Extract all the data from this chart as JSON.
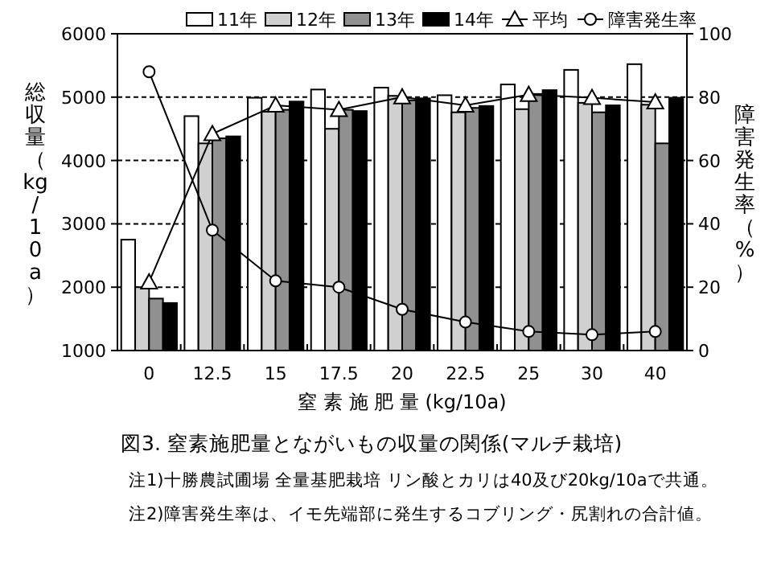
{
  "chart_data": {
    "type": "bar",
    "title": "図3. 窒素施肥量とながいもの収量の関係(マルチ栽培)",
    "xlabel": "窒 素 施 肥 量 (kg/10a)",
    "ylabel": "総収量（kg/10a）",
    "y2label": "障害発生率（%）",
    "categories": [
      "0",
      "12.5",
      "15",
      "17.5",
      "20",
      "22.5",
      "25",
      "30",
      "40"
    ],
    "series": [
      {
        "name": "11年",
        "color": "#ffffff",
        "values": [
          2750,
          4700,
          4990,
          5120,
          5150,
          5030,
          5200,
          5430,
          5520
        ]
      },
      {
        "name": "12年",
        "color": "#d0d0d0",
        "values": [
          2000,
          4270,
          4770,
          4500,
          5020,
          4760,
          4810,
          4910,
          4880
        ]
      },
      {
        "name": "13年",
        "color": "#909090",
        "values": [
          1820,
          4350,
          4800,
          4800,
          4950,
          4830,
          5050,
          4760,
          4270
        ]
      },
      {
        "name": "14年",
        "color": "#000000",
        "values": [
          1750,
          4380,
          4930,
          4780,
          4980,
          4860,
          5110,
          4870,
          4990
        ]
      },
      {
        "name": "平均",
        "type": "line",
        "color": "#000000",
        "marker": "triangle",
        "values": [
          2080,
          4420,
          4870,
          4800,
          5000,
          4870,
          5040,
          4990,
          4920
        ]
      },
      {
        "name": "障害発生率",
        "type": "line",
        "axis": "y2",
        "color": "#000000",
        "marker": "circle",
        "values": [
          88,
          38,
          22,
          20,
          13,
          9,
          6,
          5,
          6
        ]
      }
    ],
    "ylim": [
      1000,
      6000
    ],
    "yticks": [
      1000,
      2000,
      3000,
      4000,
      5000,
      6000
    ],
    "y2lim": [
      0,
      100
    ],
    "y2ticks": [
      0,
      20,
      40,
      60,
      80,
      100
    ],
    "grid": "y",
    "legend": "top",
    "annotations": [
      "注1)十勝農試圃場 全量基肥栽培 リン酸とカリは40及び20kg/10aで共通。",
      "注2)障害発生率は、イモ先端部に発生するコブリング・尻割れの合計値。"
    ]
  }
}
